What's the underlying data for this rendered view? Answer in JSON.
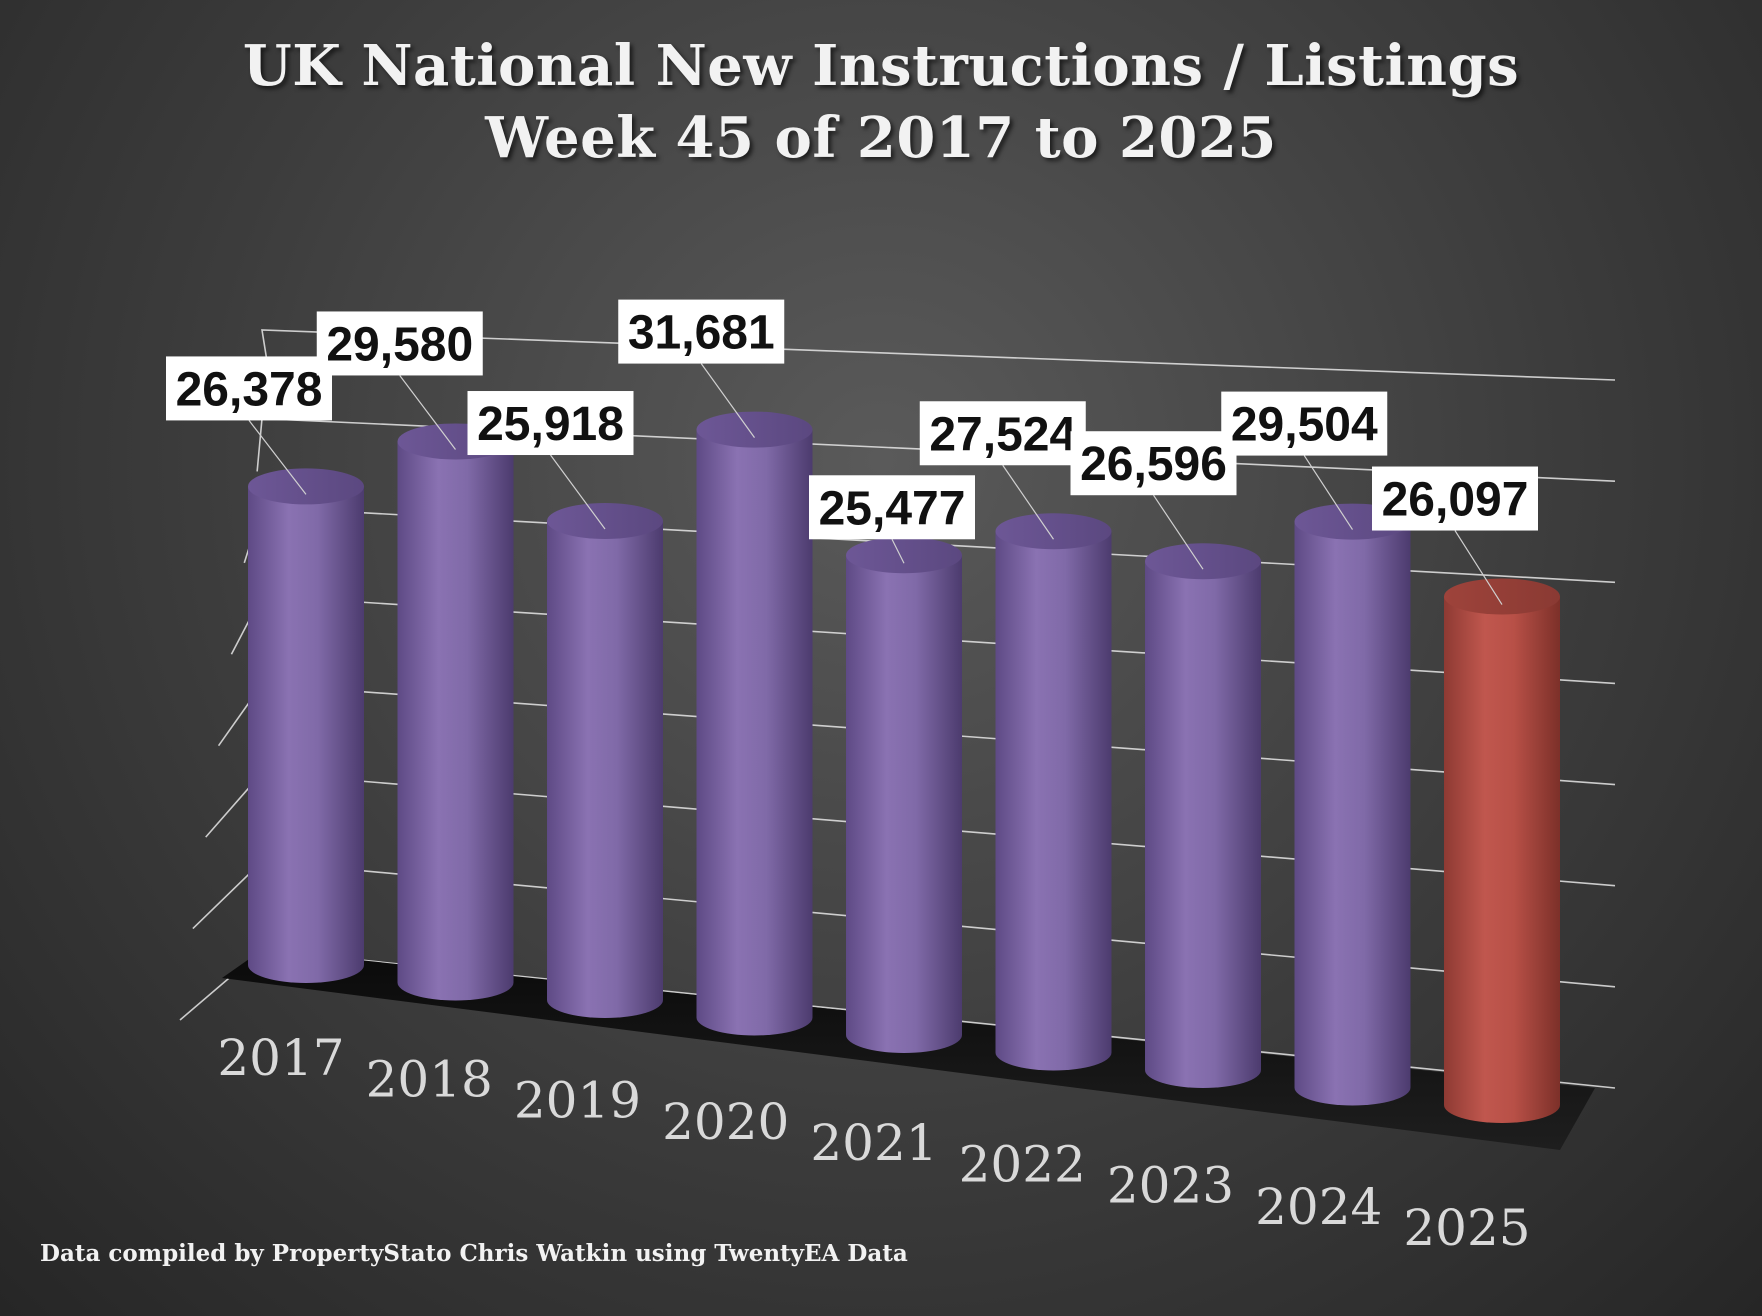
{
  "title": {
    "line1": "UK National New Instructions / Listings",
    "line2": "Week 45 of 2017 to 2025"
  },
  "footer": "Data compiled by PropertyStato Chris Watkin using TwentyEA Data",
  "colors": {
    "bar": "#8a72b2",
    "highlight_bar": "#c0574e",
    "background": "#3c3c3c"
  },
  "chart_data": {
    "type": "bar",
    "style": "3d-cylinder",
    "categories": [
      "2017",
      "2018",
      "2019",
      "2020",
      "2021",
      "2022",
      "2023",
      "2024",
      "2025"
    ],
    "values": [
      26378,
      29580,
      25918,
      31681,
      25477,
      27524,
      26596,
      29504,
      26097
    ],
    "labels": [
      "26,378",
      "29,580",
      "25,918",
      "31,681",
      "25,477",
      "27,524",
      "26,596",
      "29,504",
      "26,097"
    ],
    "highlight_category": "2025",
    "ylim": [
      0,
      35000
    ],
    "grid": true,
    "legend": "none"
  }
}
